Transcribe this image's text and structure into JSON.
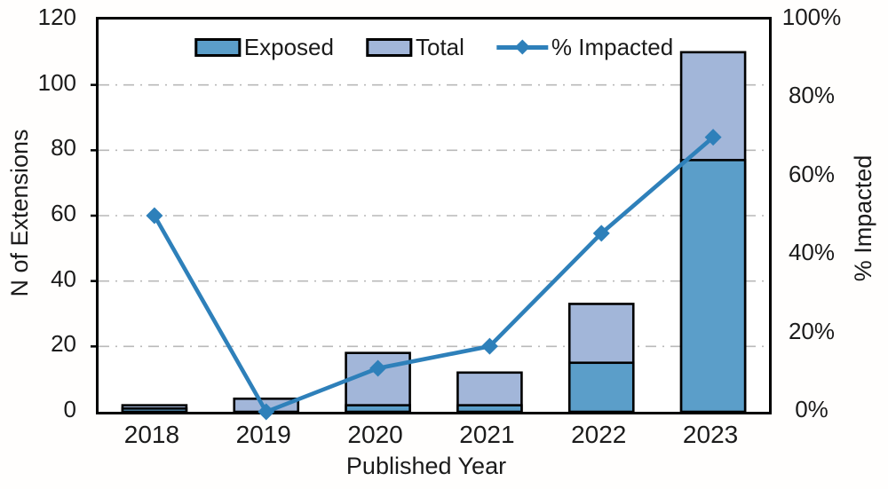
{
  "chart_data": {
    "type": "bar",
    "subtype": "stacked-bars-with-line-overlay",
    "categories": [
      "2018",
      "2019",
      "2020",
      "2021",
      "2022",
      "2023"
    ],
    "series": [
      {
        "name": "Exposed",
        "type": "bar",
        "axis": "left",
        "color": "#5b9ec9",
        "values": [
          1,
          0,
          2,
          2,
          15,
          77
        ]
      },
      {
        "name": "Total",
        "type": "bar",
        "axis": "left",
        "color": "#a2b6d9",
        "values": [
          2,
          4,
          18,
          12,
          33,
          110
        ]
      },
      {
        "name": "% Impacted",
        "type": "line",
        "axis": "right",
        "color": "#2e80ba",
        "marker": "diamond",
        "values": [
          50,
          0,
          11.1,
          16.7,
          45.5,
          70
        ]
      }
    ],
    "x_axis": {
      "label": "Published Year"
    },
    "left_axis": {
      "label": "N of Extensions",
      "min": 0,
      "max": 120,
      "ticks": [
        0,
        20,
        40,
        60,
        80,
        100,
        120
      ]
    },
    "right_axis": {
      "label": "% Impacted",
      "min": 0,
      "max": 100,
      "ticks": [
        0,
        20,
        40,
        60,
        80,
        100
      ],
      "tick_labels": [
        "0%",
        "20%",
        "40%",
        "60%",
        "80%",
        "100%"
      ]
    },
    "grid": {
      "horizontal": true,
      "style": "dash-dot",
      "color": "#b9b9b9",
      "at_left_values": [
        20,
        40,
        60,
        80,
        100
      ]
    },
    "legend_position": "top-center-inside",
    "bar_border_color": "#000000",
    "plot_border_color": "#000000"
  }
}
